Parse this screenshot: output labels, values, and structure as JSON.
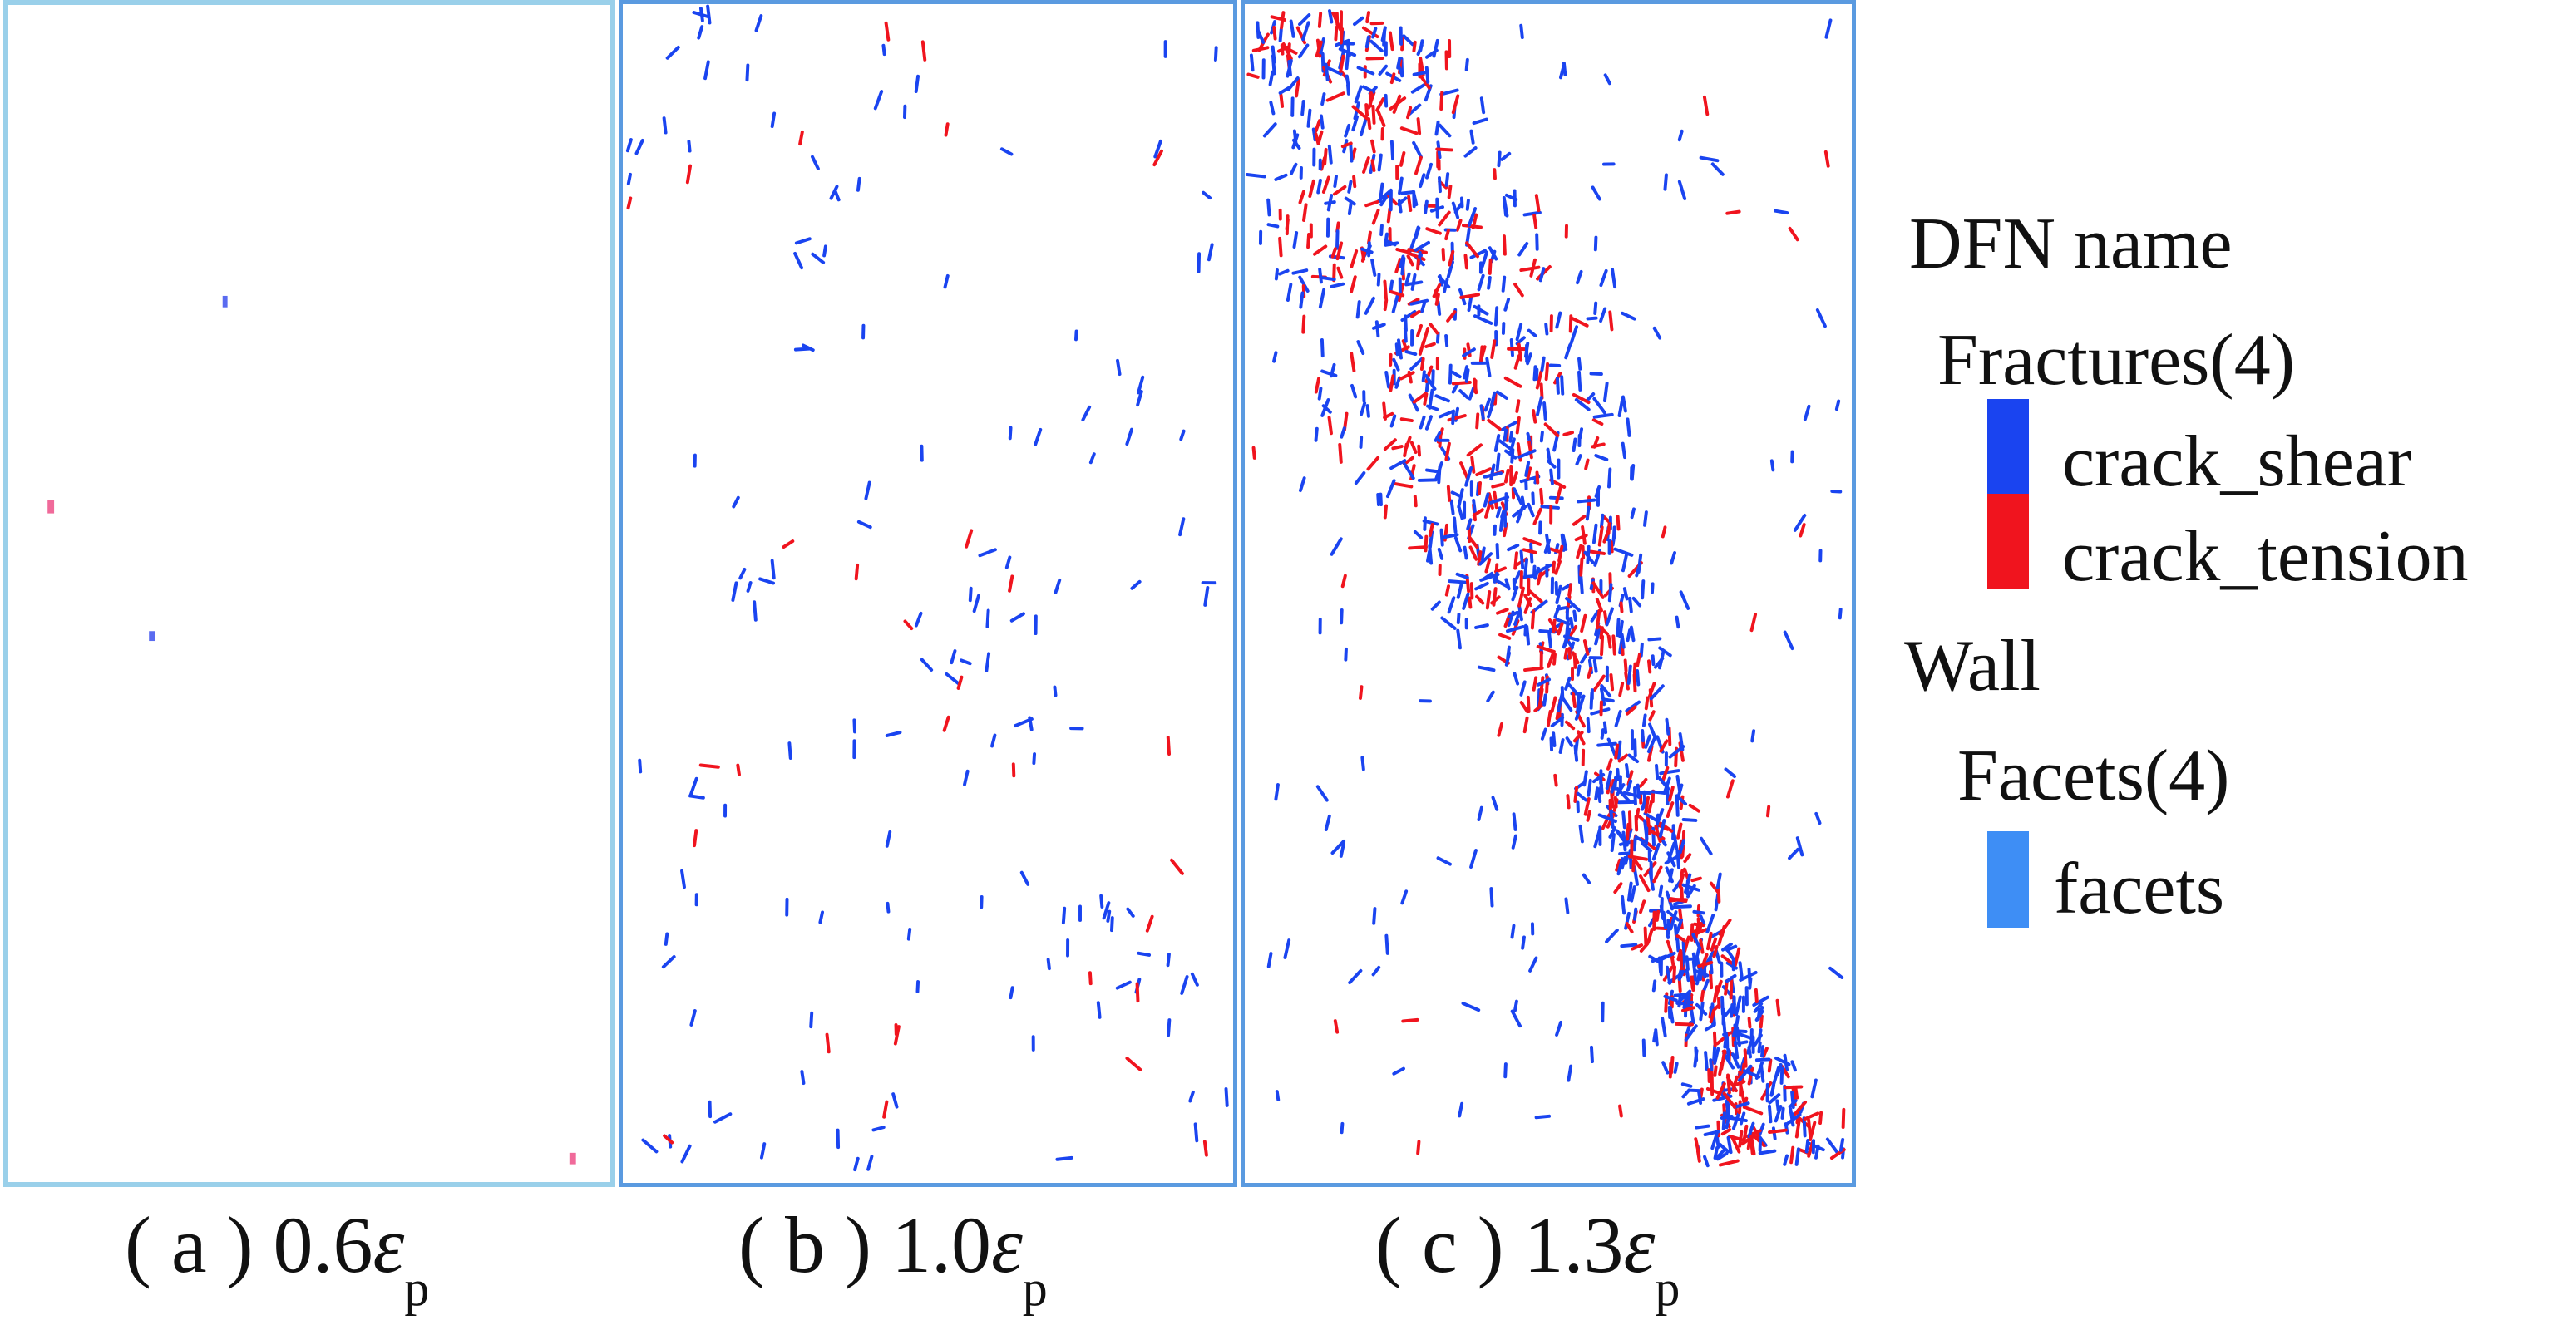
{
  "captions": [
    {
      "prefix": "( a ) 0.6",
      "symbol": "ε",
      "sub": "p"
    },
    {
      "prefix": "( b ) 1.0",
      "symbol": "ε",
      "sub": "p"
    },
    {
      "prefix": "( c ) 1.3",
      "symbol": "ε",
      "sub": "p"
    }
  ],
  "legend": {
    "title": "DFN name",
    "fractures": "Fractures(4)",
    "shear": "crack_shear",
    "tension": "crack_tension",
    "wall": "Wall",
    "facets_group": "Facets(4)",
    "facets": "facets"
  },
  "colors": {
    "shear": "#1a44f0",
    "tension": "#f0141e",
    "facet": "#3e8ef5",
    "panel_border": "#5a9ae0",
    "panel_a_border": "#9ad0ea"
  }
}
